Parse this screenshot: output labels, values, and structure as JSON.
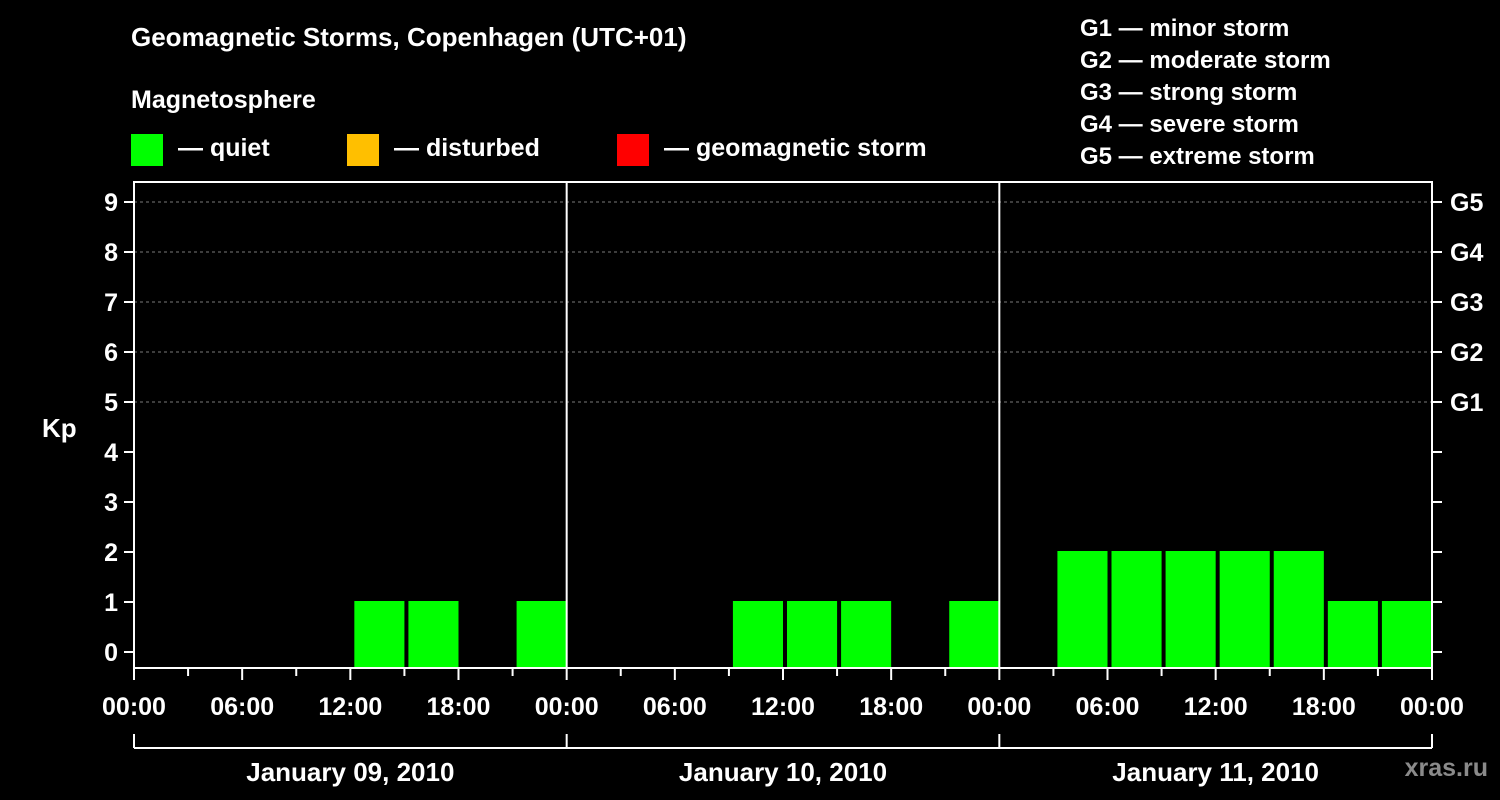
{
  "title": "Geomagnetic Storms, Copenhagen (UTC+01)",
  "legend": {
    "title": "Magnetosphere",
    "items": [
      {
        "label": "— quiet",
        "color": "#00ff00"
      },
      {
        "label": "— disturbed",
        "color": "#ffbf00"
      },
      {
        "label": "— geomagnetic storm",
        "color": "#ff0000"
      }
    ]
  },
  "storm_scale": [
    "G1 — minor storm",
    "G2 — moderate storm",
    "G3 — strong storm",
    "G4 — severe storm",
    "G5 — extreme storm"
  ],
  "watermark": "xras.ru",
  "chart_data": {
    "type": "bar",
    "ylabel": "Kp",
    "ylim": [
      0,
      9
    ],
    "y_ticks": [
      "0",
      "1",
      "2",
      "3",
      "4",
      "5",
      "6",
      "7",
      "8",
      "9"
    ],
    "right_axis_labels": [
      {
        "kp": 5,
        "label": "G1"
      },
      {
        "kp": 6,
        "label": "G2"
      },
      {
        "kp": 7,
        "label": "G3"
      },
      {
        "kp": 8,
        "label": "G4"
      },
      {
        "kp": 9,
        "label": "G5"
      }
    ],
    "x_tick_labels": [
      "00:00",
      "06:00",
      "12:00",
      "18:00",
      "00:00",
      "06:00",
      "12:00",
      "18:00",
      "00:00",
      "06:00",
      "12:00",
      "18:00",
      "00:00"
    ],
    "days": [
      "January 09, 2010",
      "January 10, 2010",
      "January 11, 2010"
    ],
    "bar_color": "#00ff00",
    "bars": [
      {
        "day": 0,
        "hour": 12,
        "value": 1
      },
      {
        "day": 0,
        "hour": 15,
        "value": 1
      },
      {
        "day": 0,
        "hour": 21,
        "value": 1
      },
      {
        "day": 1,
        "hour": 9,
        "value": 1
      },
      {
        "day": 1,
        "hour": 12,
        "value": 1
      },
      {
        "day": 1,
        "hour": 15,
        "value": 1
      },
      {
        "day": 1,
        "hour": 21,
        "value": 1
      },
      {
        "day": 2,
        "hour": 3,
        "value": 2
      },
      {
        "day": 2,
        "hour": 6,
        "value": 2
      },
      {
        "day": 2,
        "hour": 9,
        "value": 2
      },
      {
        "day": 2,
        "hour": 12,
        "value": 2
      },
      {
        "day": 2,
        "hour": 15,
        "value": 2
      },
      {
        "day": 2,
        "hour": 18,
        "value": 1
      },
      {
        "day": 2,
        "hour": 21,
        "value": 1
      }
    ]
  }
}
